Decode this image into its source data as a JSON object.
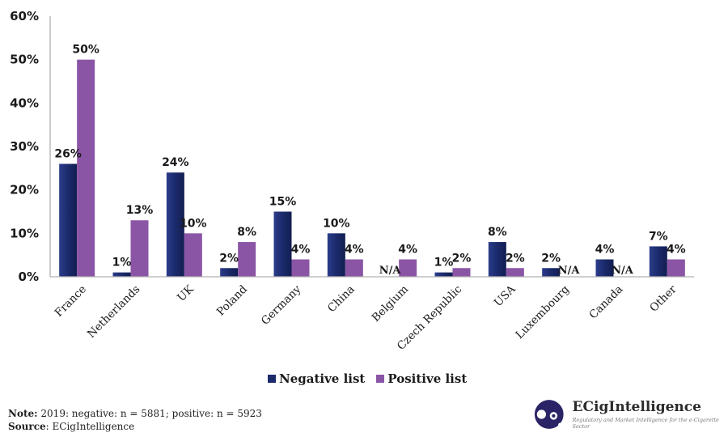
{
  "chart_data": {
    "type": "bar",
    "title": "",
    "xlabel": "",
    "ylabel": "",
    "ylim": [
      0,
      60
    ],
    "y_ticks": [
      "0%",
      "10%",
      "20%",
      "30%",
      "40%",
      "50%",
      "60%"
    ],
    "y_tick_values": [
      0,
      10,
      20,
      30,
      40,
      50,
      60
    ],
    "grid": false,
    "legend_position": "bottom",
    "categories": [
      "France",
      "Netherlands",
      "UK",
      "Poland",
      "Germany",
      "China",
      "Belgium",
      "Czech Republic",
      "USA",
      "Luxembourg",
      "Canada",
      "Other"
    ],
    "series": [
      {
        "name": "Negative list",
        "color": "#1b2a6b",
        "values": [
          26,
          1,
          24,
          2,
          15,
          10,
          null,
          1,
          8,
          2,
          4,
          7
        ],
        "labels": [
          "26%",
          "1%",
          "24%",
          "2%",
          "15%",
          "10%",
          "N/A",
          "1%",
          "8%",
          "2%",
          "4%",
          "7%"
        ]
      },
      {
        "name": "Positive list",
        "color": "#8b55a6",
        "values": [
          50,
          13,
          10,
          8,
          4,
          4,
          4,
          2,
          2,
          null,
          null,
          4
        ],
        "labels": [
          "50%",
          "13%",
          "10%",
          "8%",
          "4%",
          "4%",
          "4%",
          "2%",
          "2%",
          "N/A",
          "N/A",
          "4%"
        ]
      }
    ]
  },
  "legend": {
    "negative": "Negative list",
    "positive": "Positive list"
  },
  "footer": {
    "note_label": "Note:",
    "note_text": " 2019: negative: n = 5881; positive: n = 5923",
    "source_label": "Source",
    "source_text": ": ECigIntelligence"
  },
  "logo": {
    "icon": "ecig-logo-icon",
    "title": "ECigIntelligence",
    "subtitle": "Regulatory and Market Intelligence for the e-Cigarette Sector",
    "color": "#2a2466"
  }
}
